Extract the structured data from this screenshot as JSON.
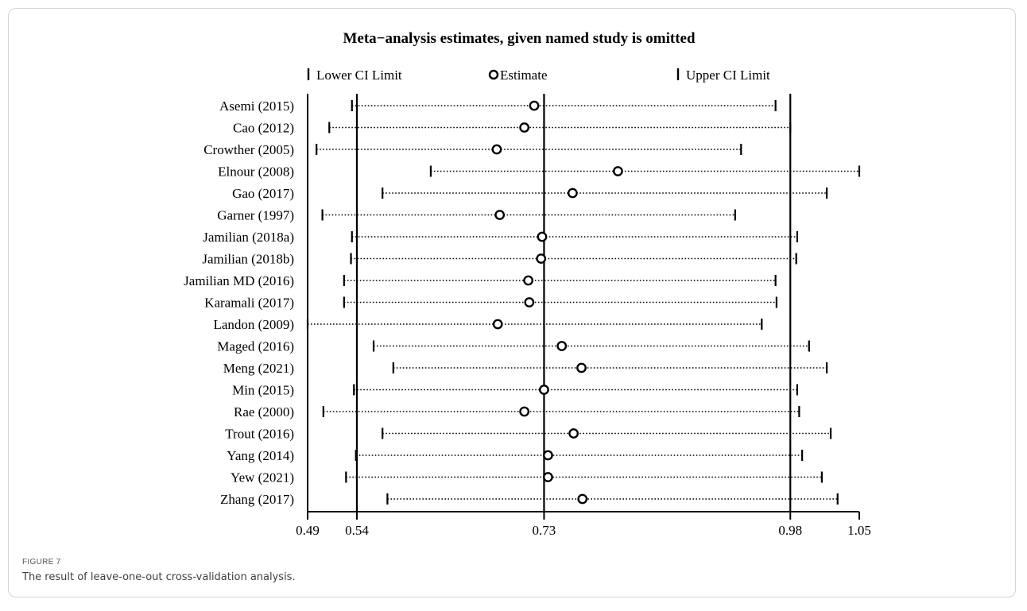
{
  "figure": {
    "label": "FIGURE 7",
    "caption": "The result of leave-one-out cross-validation analysis."
  },
  "chart_data": {
    "type": "forest",
    "title": "Meta−analysis estimates, given named study is omitted",
    "legend": {
      "lower": "Lower CI Limit",
      "estimate": "Estimate",
      "upper": "Upper CI Limit"
    },
    "xlim": [
      0.49,
      1.05
    ],
    "x_ticks": [
      0.49,
      0.54,
      0.73,
      0.98,
      1.05
    ],
    "x_tick_labels": [
      "0.49",
      "0.54",
      "0.73",
      "0.98",
      "1.05"
    ],
    "reference_lines": [
      0.54,
      0.73,
      0.98
    ],
    "studies": [
      {
        "name": "Asemi (2015)",
        "lower": 0.535,
        "estimate": 0.72,
        "upper": 0.965
      },
      {
        "name": "Cao (2012)",
        "lower": 0.512,
        "estimate": 0.71,
        "upper": 0.98
      },
      {
        "name": "Crowther (2005)",
        "lower": 0.499,
        "estimate": 0.682,
        "upper": 0.93
      },
      {
        "name": "Elnour (2008)",
        "lower": 0.615,
        "estimate": 0.805,
        "upper": 1.05
      },
      {
        "name": "Gao (2017)",
        "lower": 0.566,
        "estimate": 0.759,
        "upper": 1.017
      },
      {
        "name": "Garner (1997)",
        "lower": 0.505,
        "estimate": 0.685,
        "upper": 0.924
      },
      {
        "name": "Jamilian (2018a)",
        "lower": 0.535,
        "estimate": 0.728,
        "upper": 0.987
      },
      {
        "name": "Jamilian (2018b)",
        "lower": 0.534,
        "estimate": 0.727,
        "upper": 0.986
      },
      {
        "name": "Jamilian MD (2016)",
        "lower": 0.527,
        "estimate": 0.714,
        "upper": 0.965
      },
      {
        "name": "Karamali (2017)",
        "lower": 0.527,
        "estimate": 0.715,
        "upper": 0.966
      },
      {
        "name": "Landon (2009)",
        "lower": 0.49,
        "estimate": 0.683,
        "upper": 0.951
      },
      {
        "name": "Maged (2016)",
        "lower": 0.557,
        "estimate": 0.748,
        "upper": 0.999
      },
      {
        "name": "Meng (2021)",
        "lower": 0.577,
        "estimate": 0.768,
        "upper": 1.017
      },
      {
        "name": "Min (2015)",
        "lower": 0.537,
        "estimate": 0.73,
        "upper": 0.987
      },
      {
        "name": "Rae (2000)",
        "lower": 0.506,
        "estimate": 0.71,
        "upper": 0.989
      },
      {
        "name": "Trout (2016)",
        "lower": 0.566,
        "estimate": 0.76,
        "upper": 1.021
      },
      {
        "name": "Yang (2014)",
        "lower": 0.539,
        "estimate": 0.734,
        "upper": 0.992
      },
      {
        "name": "Yew (2021)",
        "lower": 0.529,
        "estimate": 0.734,
        "upper": 1.012
      },
      {
        "name": "Zhang (2017)",
        "lower": 0.571,
        "estimate": 0.769,
        "upper": 1.028
      }
    ]
  }
}
